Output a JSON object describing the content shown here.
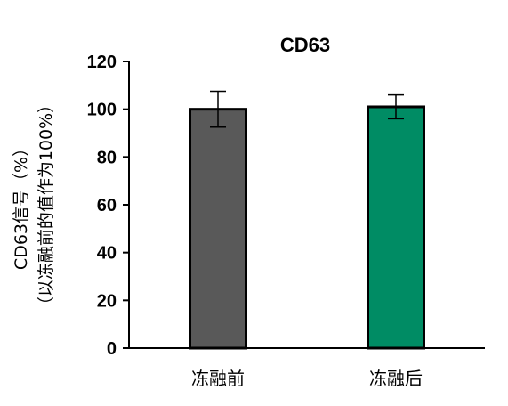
{
  "chart_data": {
    "type": "bar",
    "title": "CD63",
    "ylabel_line1": "CD63信号（%）",
    "ylabel_line2": "（以冻融前的值作为100%）",
    "categories": [
      "冻融前",
      "冻融后"
    ],
    "values": [
      100,
      101
    ],
    "errors": [
      7.5,
      5
    ],
    "ylim": [
      0,
      120
    ],
    "yticks": [
      0,
      20,
      40,
      60,
      80,
      100,
      120
    ],
    "colors": [
      "#595959",
      "#008C64"
    ],
    "grid": false,
    "legend": "none"
  }
}
